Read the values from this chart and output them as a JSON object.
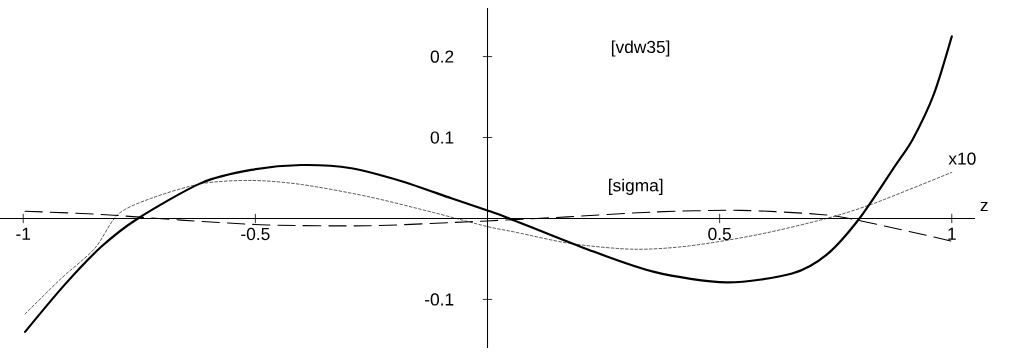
{
  "chart_data": {
    "type": "line",
    "xlabel": "z",
    "xlim": [
      -1.05,
      1.05
    ],
    "ylim": [
      -0.16,
      0.26
    ],
    "xticks": [
      -1,
      -0.5,
      0.5,
      1
    ],
    "yticks": [
      -0.1,
      0.1,
      0.2
    ],
    "grid": false,
    "marker": "none",
    "series": [
      {
        "color": "#000000",
        "line_style": "solid",
        "x": [
          -0.996,
          -0.911,
          -0.832,
          -0.753,
          -0.616,
          -0.509,
          -0.401,
          -0.293,
          -0.185,
          -0.078,
          0,
          0.047,
          0.21,
          0.359,
          0.515,
          0.656,
          0.73,
          0.801,
          0.879,
          0.916,
          0.961,
          1.0
        ],
        "values": [
          -0.14,
          -0.082,
          -0.035,
          0.0,
          0.044,
          0.06,
          0.066,
          0.062,
          0.046,
          0.025,
          0.01,
          0.0,
          -0.037,
          -0.066,
          -0.079,
          -0.068,
          -0.045,
          0.0,
          0.066,
          0.098,
          0.153,
          0.225
        ]
      },
      {
        "color": "#000000",
        "line_style": "dashed",
        "x": [
          -0.996,
          -0.832,
          -0.66,
          -0.473,
          -0.257,
          -0.078,
          0,
          0.172,
          0.359,
          0.544,
          0.716,
          0.805,
          1.0
        ],
        "values": [
          0.009,
          0.005,
          -0.002,
          -0.008,
          -0.009,
          -0.005,
          -0.003,
          0.002,
          0.008,
          0.01,
          0.005,
          -0.003,
          -0.028
        ]
      },
      {
        "color": "#000000",
        "line_style": "dotted",
        "x": [
          -0.996,
          -0.918,
          -0.846,
          -0.796,
          -0.724,
          -0.616,
          -0.509,
          -0.401,
          -0.257,
          -0.114,
          0,
          0.061,
          0.18,
          0.314,
          0.433,
          0.582,
          0.73,
          0.834,
          1.0
        ],
        "values": [
          -0.118,
          -0.074,
          -0.037,
          0.005,
          0.025,
          0.043,
          0.047,
          0.042,
          0.027,
          0.007,
          -0.01,
          -0.017,
          -0.031,
          -0.038,
          -0.034,
          -0.02,
          0.0,
          0.019,
          0.057
        ]
      }
    ],
    "annotations": [
      "[vdw35]",
      "[sigma]",
      "x10"
    ]
  }
}
